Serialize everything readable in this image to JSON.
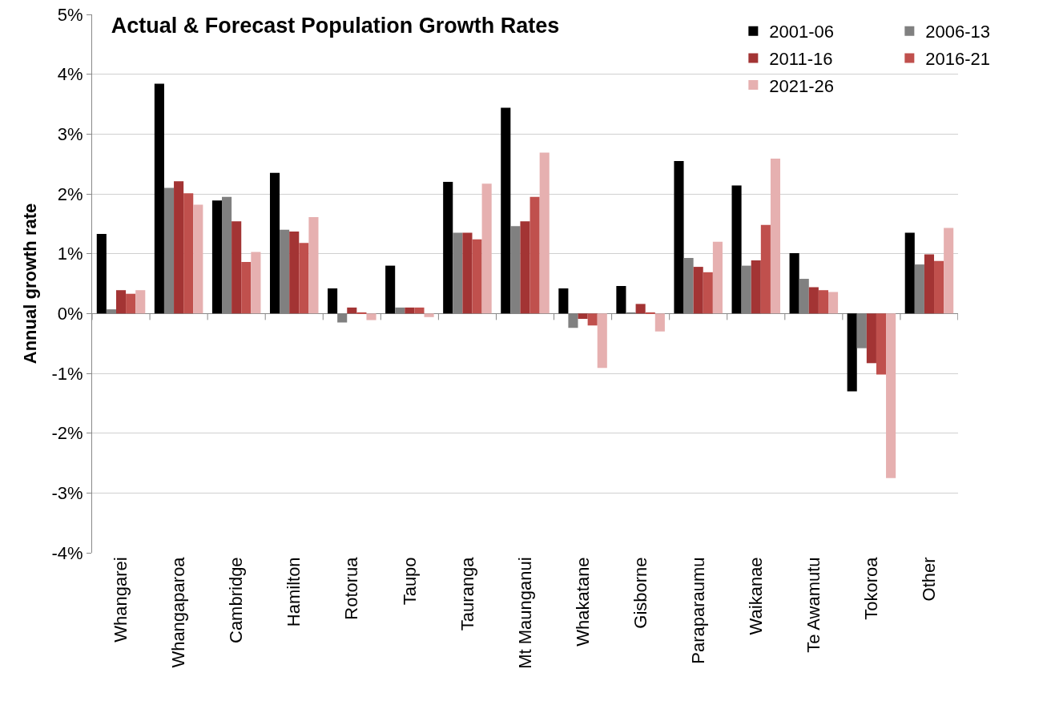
{
  "chart_data": {
    "type": "bar",
    "title": "Actual & Forecast Population Growth Rates",
    "ylabel": "Annual growth rate",
    "categories": [
      "Whangarei",
      "Whangaparoa",
      "Cambridge",
      "Hamilton",
      "Rotorua",
      "Taupo",
      "Tauranga",
      "Mt Maunganui",
      "Whakatane",
      "Gisborne",
      "Paraparaumu",
      "Waikanae",
      "Te Awamutu",
      "Tokoroa",
      "Other"
    ],
    "series": [
      {
        "name": "2001-06",
        "color": "#000000",
        "values": [
          1.33,
          3.84,
          1.89,
          2.35,
          0.42,
          0.8,
          2.2,
          3.44,
          0.42,
          0.46,
          2.55,
          2.14,
          1.01,
          -1.3,
          1.35
        ]
      },
      {
        "name": "2006-13",
        "color": "#808080",
        "values": [
          0.07,
          2.1,
          1.95,
          1.4,
          -0.15,
          0.1,
          1.35,
          1.46,
          -0.24,
          0.02,
          0.93,
          0.8,
          0.58,
          -0.58,
          0.82
        ]
      },
      {
        "name": "2011-16",
        "color": "#a33434",
        "values": [
          0.39,
          2.21,
          1.54,
          1.37,
          0.1,
          0.1,
          1.35,
          1.54,
          -0.09,
          0.16,
          0.78,
          0.89,
          0.44,
          -0.83,
          0.99
        ]
      },
      {
        "name": "2016-21",
        "color": "#c0504d",
        "values": [
          0.33,
          2.01,
          0.86,
          1.18,
          0.02,
          0.1,
          1.24,
          1.95,
          -0.2,
          0.02,
          0.69,
          1.48,
          0.39,
          -1.02,
          0.88
        ]
      },
      {
        "name": "2021-26",
        "color": "#e6b0b0",
        "values": [
          0.39,
          1.82,
          1.03,
          1.61,
          -0.11,
          -0.06,
          2.17,
          2.69,
          -0.91,
          -0.3,
          1.2,
          2.59,
          0.36,
          -2.75,
          1.43
        ]
      }
    ],
    "ylim": [
      -4,
      5
    ],
    "yticks": [
      {
        "value": -4,
        "label": "-4%"
      },
      {
        "value": -3,
        "label": "-3%"
      },
      {
        "value": -2,
        "label": "-2%"
      },
      {
        "value": -1,
        "label": "-1%"
      },
      {
        "value": 0,
        "label": "0%"
      },
      {
        "value": 1,
        "label": "1%"
      },
      {
        "value": 2,
        "label": "2%"
      },
      {
        "value": 3,
        "label": "3%"
      },
      {
        "value": 4,
        "label": "4%"
      },
      {
        "value": 5,
        "label": "5%"
      }
    ],
    "grid": "y",
    "legend": "top right"
  }
}
